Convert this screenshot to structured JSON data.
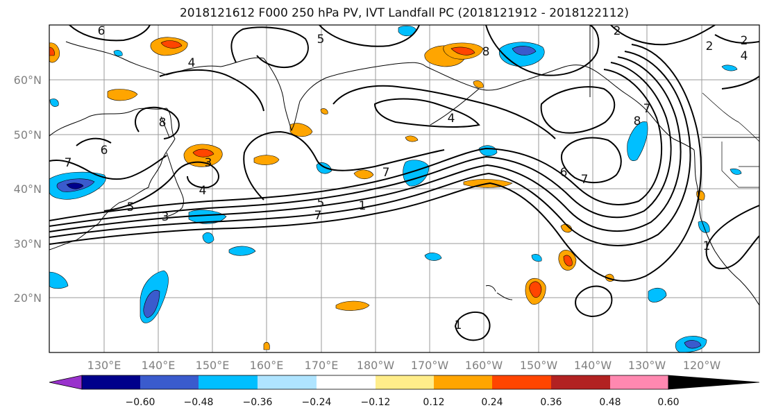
{
  "title": "2018121612 F000 250 hPa PV, IVT Landfall PC (2018121912 - 2018122112)",
  "map": {
    "lon_range": [
      120,
      -110
    ],
    "lat_range": [
      10,
      70
    ],
    "lon_ticks": [
      "130°E",
      "140°E",
      "150°E",
      "160°E",
      "170°E",
      "180°W",
      "170°W",
      "160°W",
      "150°W",
      "140°W",
      "130°W",
      "120°W"
    ],
    "lat_ticks": [
      "20°N",
      "30°N",
      "40°N",
      "50°N",
      "60°N"
    ],
    "grid": true,
    "pv_contour_labels": [
      "6",
      "2",
      "6",
      "4",
      "5",
      "7",
      "3",
      "4",
      "5",
      "3",
      "7",
      "5",
      "1",
      "7",
      "8",
      "2",
      "7",
      "4",
      "8",
      "6",
      "7",
      "1",
      "1",
      "2",
      "4",
      "8"
    ]
  },
  "colorbar": {
    "levels": [
      "−0.60",
      "−0.48",
      "−0.36",
      "−0.24",
      "−0.12",
      "0.12",
      "0.24",
      "0.36",
      "0.48",
      "0.60"
    ],
    "colors": [
      "#9932cc",
      "#00008b",
      "#3a5bcd",
      "#00bfff",
      "#afe4ff",
      "#ffffff",
      "#ffed8a",
      "#ffa500",
      "#ff4500",
      "#b22222",
      "#ff88b0"
    ]
  }
}
